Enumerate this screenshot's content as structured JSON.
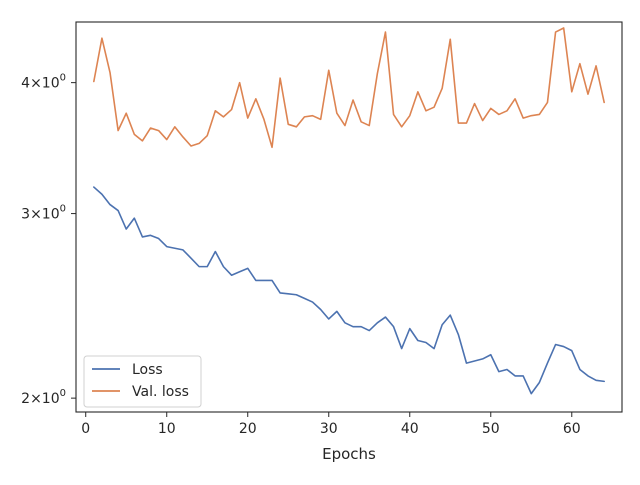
{
  "chart_data": {
    "type": "line",
    "xlabel": "Epochs",
    "ylabel": "",
    "y_scale": "log",
    "xlim": [
      -1.2,
      66.2
    ],
    "ylim": [
      1.94,
      4.57
    ],
    "x_ticks": [
      0,
      10,
      20,
      30,
      40,
      50,
      60
    ],
    "x_tick_labels": [
      "0",
      "10",
      "20",
      "30",
      "40",
      "50",
      "60"
    ],
    "y_ticks": [
      {
        "value": 2,
        "base": "2",
        "exp": "0"
      },
      {
        "value": 3,
        "base": "3",
        "exp": "0"
      },
      {
        "value": 4,
        "base": "4",
        "exp": "0"
      }
    ],
    "y_tick_multiplier": "×10",
    "grid": false,
    "legend_position": "lower-left",
    "x": [
      1,
      2,
      3,
      4,
      5,
      6,
      7,
      8,
      9,
      10,
      11,
      12,
      13,
      14,
      15,
      16,
      17,
      18,
      19,
      20,
      21,
      22,
      23,
      24,
      25,
      26,
      27,
      28,
      29,
      30,
      31,
      32,
      33,
      34,
      35,
      36,
      37,
      38,
      39,
      40,
      41,
      42,
      43,
      44,
      45,
      46,
      47,
      48,
      49,
      50,
      51,
      52,
      53,
      54,
      55,
      56,
      57,
      58,
      59,
      60,
      61,
      62,
      63,
      64
    ],
    "series": [
      {
        "name": "Loss",
        "color": "#4c72b0",
        "values": [
          3.18,
          3.13,
          3.06,
          3.02,
          2.9,
          2.97,
          2.85,
          2.86,
          2.84,
          2.79,
          2.78,
          2.77,
          2.72,
          2.67,
          2.67,
          2.76,
          2.67,
          2.62,
          2.64,
          2.66,
          2.59,
          2.59,
          2.59,
          2.52,
          2.515,
          2.51,
          2.49,
          2.47,
          2.43,
          2.38,
          2.42,
          2.36,
          2.34,
          2.34,
          2.32,
          2.36,
          2.39,
          2.34,
          2.23,
          2.33,
          2.27,
          2.26,
          2.23,
          2.35,
          2.4,
          2.3,
          2.16,
          2.17,
          2.18,
          2.2,
          2.12,
          2.13,
          2.1,
          2.1,
          2.02,
          2.07,
          2.16,
          2.25,
          2.24,
          2.22,
          2.13,
          2.1,
          2.08,
          2.075
        ]
      },
      {
        "name": "Val. loss",
        "color": "#dd8452",
        "values": [
          4.01,
          4.41,
          4.09,
          3.6,
          3.74,
          3.57,
          3.52,
          3.62,
          3.6,
          3.53,
          3.63,
          3.55,
          3.48,
          3.5,
          3.56,
          3.76,
          3.71,
          3.77,
          4.0,
          3.7,
          3.86,
          3.69,
          3.47,
          4.04,
          3.65,
          3.63,
          3.71,
          3.72,
          3.69,
          4.11,
          3.74,
          3.64,
          3.85,
          3.67,
          3.64,
          4.08,
          4.47,
          3.73,
          3.63,
          3.72,
          3.92,
          3.76,
          3.79,
          3.95,
          4.4,
          3.66,
          3.66,
          3.82,
          3.68,
          3.78,
          3.73,
          3.76,
          3.86,
          3.7,
          3.72,
          3.73,
          3.83,
          4.47,
          4.51,
          3.92,
          4.17,
          3.9,
          4.15,
          3.83
        ]
      }
    ]
  }
}
